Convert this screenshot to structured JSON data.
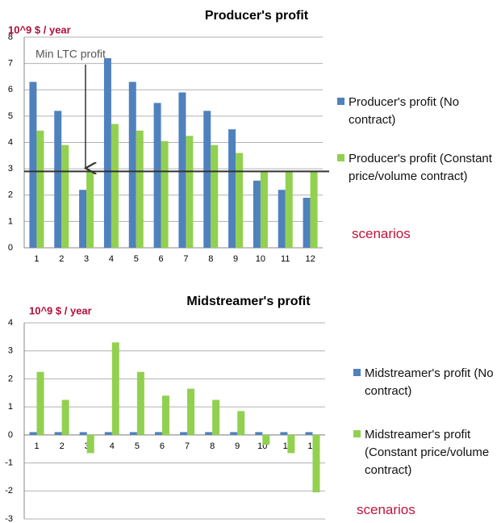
{
  "chart_data": [
    {
      "type": "bar",
      "title": "Producer's profit",
      "y_label": "10^9 $ / year",
      "categories": [
        "1",
        "2",
        "3",
        "4",
        "5",
        "6",
        "7",
        "8",
        "9",
        "10",
        "11",
        "12"
      ],
      "series": [
        {
          "name": "Producer's profit (No contract)",
          "color": "#4f81bd",
          "values": [
            6.3,
            5.2,
            2.2,
            7.2,
            6.3,
            5.5,
            5.9,
            5.2,
            4.5,
            2.55,
            2.2,
            1.9
          ]
        },
        {
          "name": "Producer's profit (Constant price/volume contract)",
          "color": "#92d050",
          "values": [
            4.45,
            3.9,
            2.9,
            4.7,
            4.45,
            4.05,
            4.25,
            3.9,
            3.6,
            2.9,
            2.9,
            2.9
          ]
        }
      ],
      "ylim": [
        0,
        8
      ],
      "yticks": [
        0,
        1,
        2,
        3,
        4,
        5,
        6,
        7,
        8
      ],
      "grid": true,
      "reference_line": {
        "value": 2.9,
        "label": "Min LTC profit"
      },
      "legend_note": "scenarios"
    },
    {
      "type": "bar",
      "title": "Midstreamer's profit",
      "y_label": "10^9 $ / year",
      "categories": [
        "1",
        "2",
        "3",
        "4",
        "5",
        "6",
        "7",
        "8",
        "9",
        "10",
        "11",
        "12"
      ],
      "series": [
        {
          "name": "Midstreamer's profit (No contract)",
          "color": "#4f81bd",
          "values": [
            0.1,
            0.1,
            0.1,
            0.1,
            0.1,
            0.1,
            0.1,
            0.1,
            0.1,
            0.1,
            0.1,
            0.1
          ]
        },
        {
          "name": "Midstreamer's profit (Constant price/volume contract)",
          "color": "#92d050",
          "values": [
            2.25,
            1.25,
            -0.65,
            3.3,
            2.25,
            1.4,
            1.65,
            1.25,
            0.85,
            -0.35,
            -0.65,
            -2.05
          ]
        }
      ],
      "ylim": [
        -3,
        4
      ],
      "yticks": [
        -3,
        -2,
        -1,
        0,
        1,
        2,
        3,
        4
      ],
      "grid": true,
      "legend_note": "scenarios"
    }
  ]
}
